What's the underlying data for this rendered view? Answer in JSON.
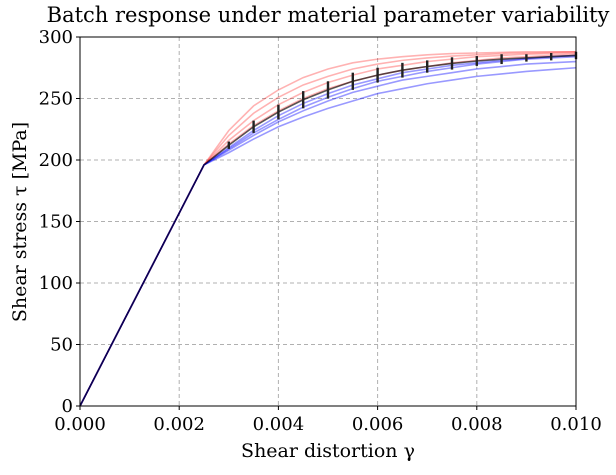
{
  "chart_data": {
    "type": "line",
    "title": "Batch response under material parameter variability",
    "xlabel": "Shear distortion γ",
    "ylabel": "Shear stress τ [MPa]",
    "x": [
      0,
      0.0025,
      0.003,
      0.0035,
      0.004,
      0.0045,
      0.005,
      0.0055,
      0.006,
      0.0065,
      0.007,
      0.0075,
      0.008,
      0.0085,
      0.009,
      0.0095,
      0.01
    ],
    "series": [
      {
        "color": "rgba(255,0,0,0.3)",
        "values": [
          0,
          196,
          224,
          244,
          257,
          267,
          274,
          279,
          282,
          284,
          285.5,
          286.5,
          287,
          287.5,
          288,
          288,
          288
        ]
      },
      {
        "color": "rgba(255,0,0,0.3)",
        "values": [
          0,
          196,
          220,
          238,
          251,
          261,
          268,
          274,
          278,
          281,
          283,
          284.5,
          285.5,
          286.5,
          287,
          287.5,
          288
        ]
      },
      {
        "color": "rgba(255,0,0,0.3)",
        "values": [
          0,
          196,
          216,
          232,
          245,
          255,
          263,
          269,
          274,
          277,
          280,
          282,
          284,
          285,
          286,
          286.5,
          287
        ]
      },
      {
        "color": "rgba(255,0,0,0.3)",
        "values": [
          0,
          196,
          213,
          228,
          240,
          250,
          258,
          264,
          269,
          273,
          276,
          279,
          281,
          283,
          284,
          285,
          286
        ]
      },
      {
        "color": "rgba(0,0,255,0.4)",
        "values": [
          0,
          196,
          210,
          224,
          236,
          246,
          254,
          261,
          266,
          271,
          274,
          277,
          279,
          281,
          282.5,
          284,
          285
        ]
      },
      {
        "color": "rgba(0,0,255,0.4)",
        "values": [
          0,
          196,
          208,
          220,
          231,
          240,
          248,
          255,
          260,
          265,
          268,
          271,
          274,
          276,
          278,
          279,
          280
        ]
      },
      {
        "color": "rgba(0,0,255,0.4)",
        "values": [
          0,
          196,
          206,
          217,
          227,
          235,
          242,
          248,
          254,
          258,
          262,
          265,
          268,
          270,
          272,
          273.5,
          275
        ]
      },
      {
        "color": "rgba(0,0,255,0.4)",
        "values": [
          0,
          196,
          209,
          222,
          233,
          243,
          251,
          258,
          264,
          268,
          272,
          275,
          278,
          280,
          282,
          283,
          284
        ]
      },
      {
        "color": "rgba(0,0,0,0.65)",
        "values": [
          0,
          196,
          212,
          227,
          239,
          249,
          257,
          264,
          269,
          273,
          276,
          278.5,
          280.5,
          282,
          283,
          284,
          285
        ],
        "errors": [
          null,
          null,
          3,
          5,
          6,
          7,
          7,
          7,
          6,
          6,
          5,
          5,
          4,
          4,
          3,
          3,
          3
        ]
      }
    ],
    "xlim": [
      0,
      0.01
    ],
    "xticks": [
      {
        "value": 0,
        "label": "0.000"
      },
      {
        "value": 0.002,
        "label": "0.002"
      },
      {
        "value": 0.004,
        "label": "0.004"
      },
      {
        "value": 0.006,
        "label": "0.006"
      },
      {
        "value": 0.008,
        "label": "0.008"
      },
      {
        "value": 0.01,
        "label": "0.010"
      }
    ],
    "ylim": [
      0,
      300
    ],
    "yticks": [
      0,
      50,
      100,
      150,
      200,
      250,
      300
    ],
    "grid": true
  }
}
